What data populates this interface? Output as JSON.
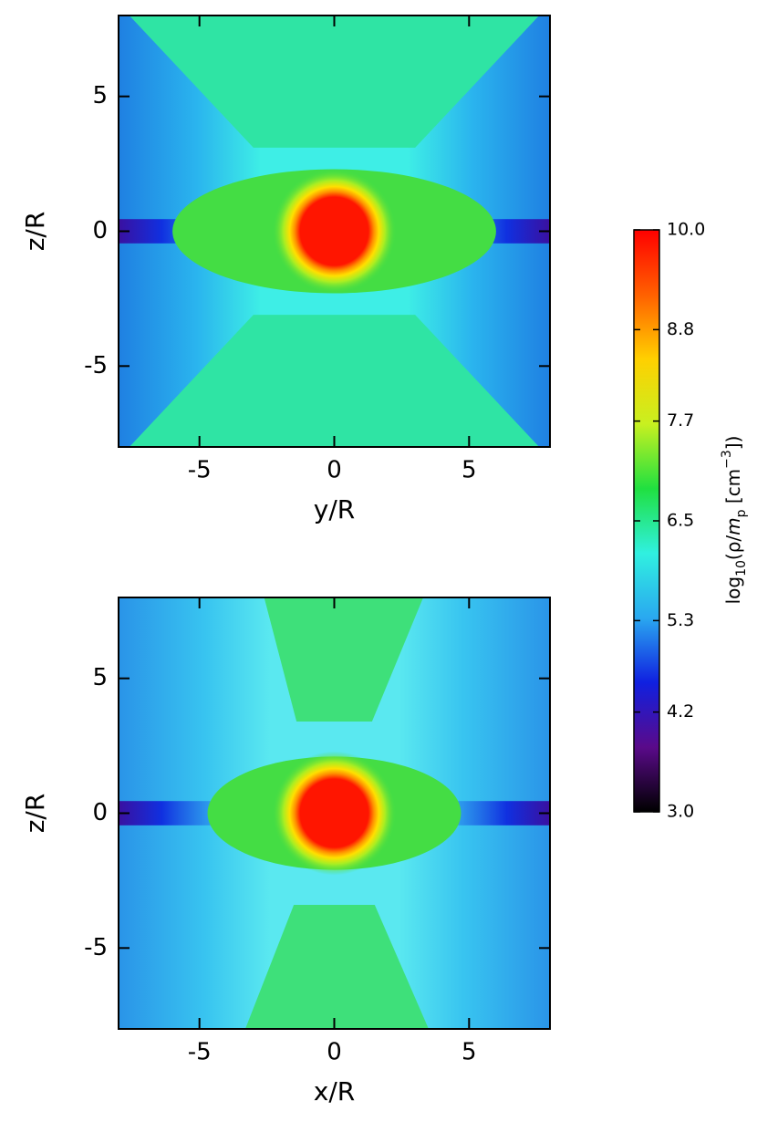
{
  "chart_data": [
    {
      "type": "heatmap",
      "xlabel": "y/R",
      "ylabel": "z/R",
      "xlim": [
        -8,
        8
      ],
      "ylim": [
        -8,
        8
      ],
      "xticks": [
        -5,
        0,
        5
      ],
      "yticks": [
        -5,
        0,
        5
      ]
    },
    {
      "type": "heatmap",
      "xlabel": "x/R",
      "ylabel": "z/R",
      "xlim": [
        -8,
        8
      ],
      "ylim": [
        -8,
        8
      ],
      "xticks": [
        -5,
        0,
        5
      ],
      "yticks": [
        -5,
        0,
        5
      ]
    },
    {
      "type": "colorbar",
      "label_parts": [
        "log",
        "10",
        "(ρ/",
        "m",
        "p",
        " [cm",
        "−3",
        "])"
      ],
      "clim": [
        3,
        10
      ],
      "ticks": [
        {
          "value": 3,
          "label": "3.0"
        },
        4.2,
        5.3,
        6.5,
        7.7,
        8.8,
        {
          "value": 10,
          "label": "10.0"
        }
      ],
      "colors": [
        "#000000",
        "#5a0a8a",
        "#1020e0",
        "#2aa8f0",
        "#30f0e0",
        "#20e040",
        "#c8f020",
        "#ffd000",
        "#ff6000",
        "#ff0000"
      ]
    }
  ]
}
